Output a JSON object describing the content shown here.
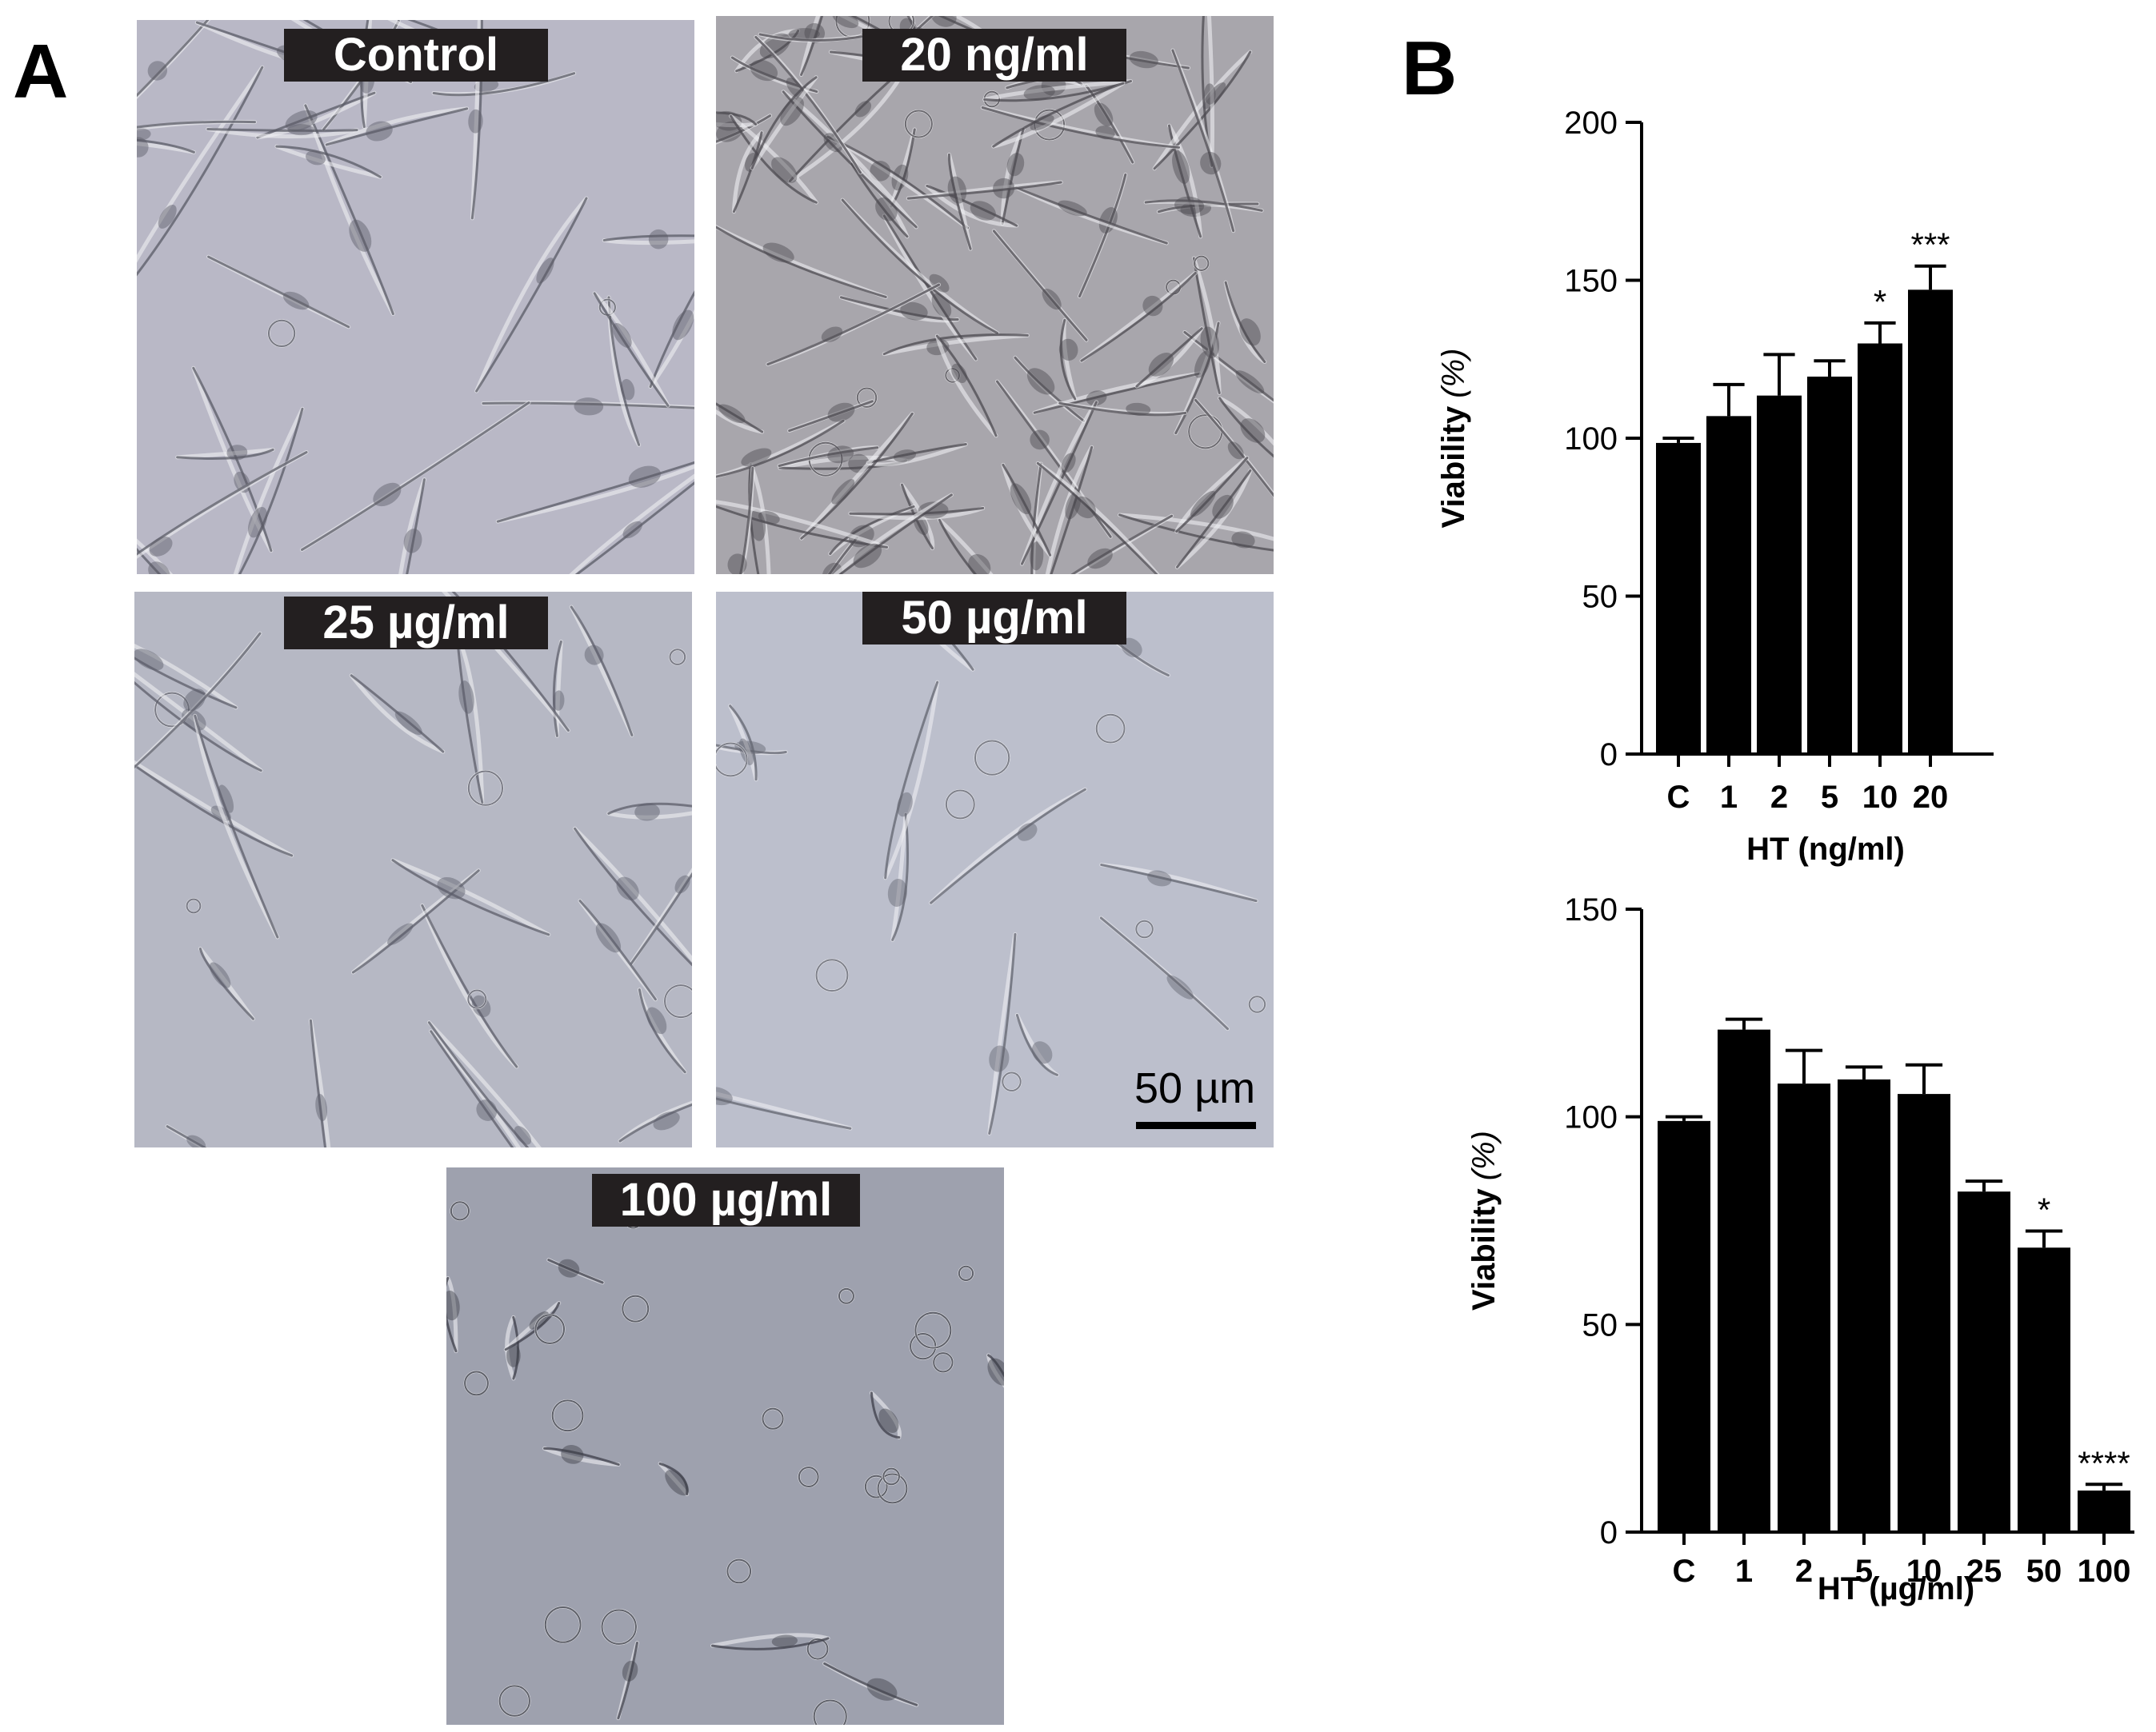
{
  "panel_labels": {
    "a": "A",
    "b": "B"
  },
  "micrographs": [
    {
      "id": "control",
      "label": "Control",
      "density": "medium",
      "tint": "#b9b8c6",
      "cell_color": "#5a5b66"
    },
    {
      "id": "20ng",
      "label": "20 ng/ml",
      "density": "high",
      "tint": "#a8a6ac",
      "cell_color": "#4c4a50"
    },
    {
      "id": "25ug",
      "label": "25 µg/ml",
      "density": "medium-low",
      "tint": "#b6b8c4",
      "cell_color": "#5c5e6a"
    },
    {
      "id": "50ug",
      "label": "50 µg/ml",
      "density": "low",
      "tint": "#bcbfcc",
      "cell_color": "#62646f"
    },
    {
      "id": "100ug",
      "label": "100 µg/ml",
      "density": "rounded",
      "tint": "#9ea1ae",
      "cell_color": "#3c3e48"
    }
  ],
  "scale_bar": {
    "label": "50 µm"
  },
  "chart_data": [
    {
      "type": "bar",
      "categories": [
        "C",
        "1",
        "2",
        "5",
        "10",
        "20"
      ],
      "values": [
        98.5,
        107,
        113.5,
        119.5,
        130,
        147
      ],
      "errors": [
        1.5,
        10,
        13,
        5,
        6.5,
        7.5
      ],
      "significance": [
        "",
        "",
        "",
        "",
        "*",
        "***"
      ],
      "xlabel": "HT (ng/ml)",
      "ylabel": "Viability",
      "ylabel_unit": "(%)",
      "ylim": [
        0,
        200
      ],
      "yticks": [
        0,
        50,
        100,
        150,
        200
      ],
      "bar_color": "#000000"
    },
    {
      "type": "bar",
      "categories": [
        "C",
        "1",
        "2",
        "5",
        "10",
        "25",
        "50",
        "100"
      ],
      "values": [
        99,
        121,
        108,
        109,
        105.5,
        82,
        68.5,
        10
      ],
      "errors": [
        1,
        2.5,
        8,
        3,
        7,
        2.5,
        4,
        1.5
      ],
      "significance": [
        "",
        "",
        "",
        "",
        "",
        "",
        "*",
        "****"
      ],
      "xlabel": "HT (µg/ml)",
      "ylabel": "Viability",
      "ylabel_unit": "(%)",
      "ylim": [
        0,
        150
      ],
      "yticks": [
        0,
        50,
        100,
        150
      ],
      "bar_color": "#000000"
    }
  ]
}
